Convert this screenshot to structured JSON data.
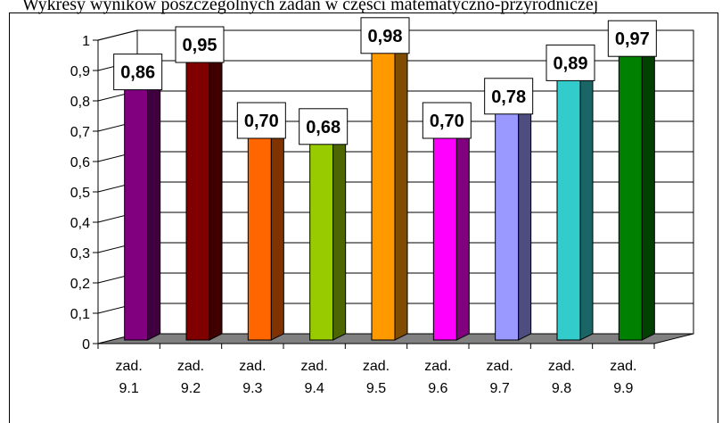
{
  "header_text": "Wykresy wyników poszczególnych zadań w części matematyczno-przyrodniczej",
  "chart_data": {
    "type": "bar",
    "title": "",
    "xlabel": "",
    "ylabel": "",
    "ylim": [
      0,
      1
    ],
    "yticks": [
      "0",
      "0,1",
      "0,2",
      "0,3",
      "0,4",
      "0,5",
      "0,6",
      "0,7",
      "0,8",
      "0,9",
      "1"
    ],
    "grid": true,
    "categories": [
      [
        "zad.",
        "9.1"
      ],
      [
        "zad.",
        "9.2"
      ],
      [
        "zad.",
        "9.3"
      ],
      [
        "zad.",
        "9.4"
      ],
      [
        "zad.",
        "9.5"
      ],
      [
        "zad.",
        "9.6"
      ],
      [
        "zad.",
        "9.7"
      ],
      [
        "zad.",
        "9.8"
      ],
      [
        "zad.",
        "9.9"
      ]
    ],
    "values": [
      0.86,
      0.95,
      0.7,
      0.68,
      0.98,
      0.7,
      0.78,
      0.89,
      0.97
    ],
    "data_labels": [
      "0,86",
      "0,95",
      "0,70",
      "0,68",
      "0,98",
      "0,70",
      "0,78",
      "0,89",
      "0,97"
    ],
    "colors": [
      "#800080",
      "#800000",
      "#ff6600",
      "#99cc00",
      "#ff9900",
      "#ff00ff",
      "#9999ff",
      "#33cccc",
      "#008000"
    ],
    "side_colors": [
      "#400040",
      "#400000",
      "#803300",
      "#4d6600",
      "#804d00",
      "#800080",
      "#4d4d80",
      "#1a6666",
      "#004000"
    ]
  }
}
